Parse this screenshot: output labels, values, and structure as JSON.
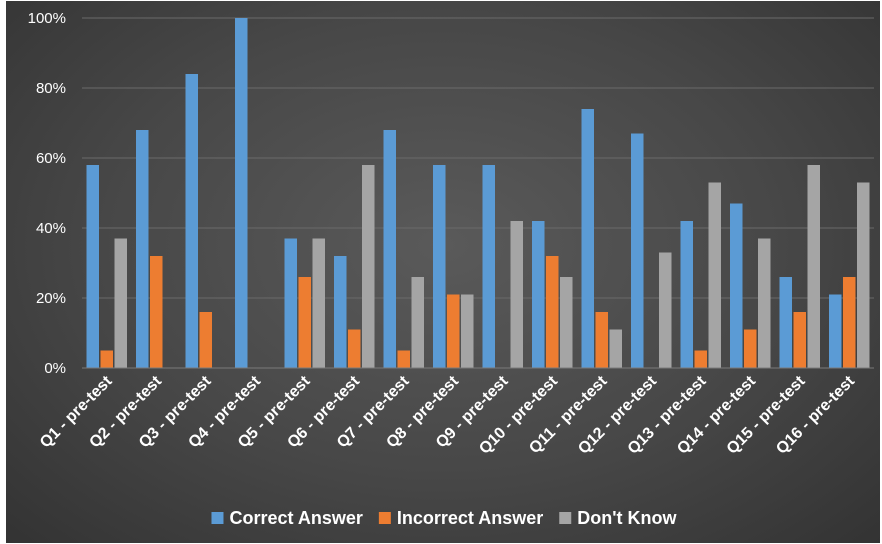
{
  "chart_data": {
    "type": "bar",
    "categories": [
      "Q1 - pre-test",
      "Q2 - pre-test",
      "Q3 - pre-test",
      "Q4 - pre-test",
      "Q5 - pre-test",
      "Q6 - pre-test",
      "Q7 - pre-test",
      "Q8 - pre-test",
      "Q9 - pre-test",
      "Q10 - pre-test",
      "Q11 - pre-test",
      "Q12 - pre-test",
      "Q13 - pre-test",
      "Q14 - pre-test",
      "Q15 - pre-test",
      "Q16 - pre-test"
    ],
    "series": [
      {
        "name": "Correct Answer",
        "color": "#5b9bd5",
        "values": [
          58,
          68,
          84,
          100,
          37,
          32,
          68,
          58,
          58,
          42,
          74,
          67,
          42,
          47,
          26,
          21
        ]
      },
      {
        "name": "Incorrect Answer",
        "color": "#ed7d31",
        "values": [
          5,
          32,
          16,
          0,
          26,
          11,
          5,
          21,
          0,
          32,
          16,
          0,
          5,
          11,
          16,
          26
        ]
      },
      {
        "name": "Don't Know",
        "color": "#a5a5a5",
        "values": [
          37,
          0,
          0,
          0,
          37,
          58,
          26,
          21,
          42,
          26,
          11,
          33,
          53,
          37,
          58,
          53
        ]
      }
    ],
    "yticks": [
      "0%",
      "20%",
      "40%",
      "60%",
      "80%",
      "100%"
    ],
    "ylim": [
      0,
      100
    ],
    "title": "",
    "xlabel": "",
    "ylabel": "",
    "grid": true,
    "legend_position": "bottom"
  }
}
